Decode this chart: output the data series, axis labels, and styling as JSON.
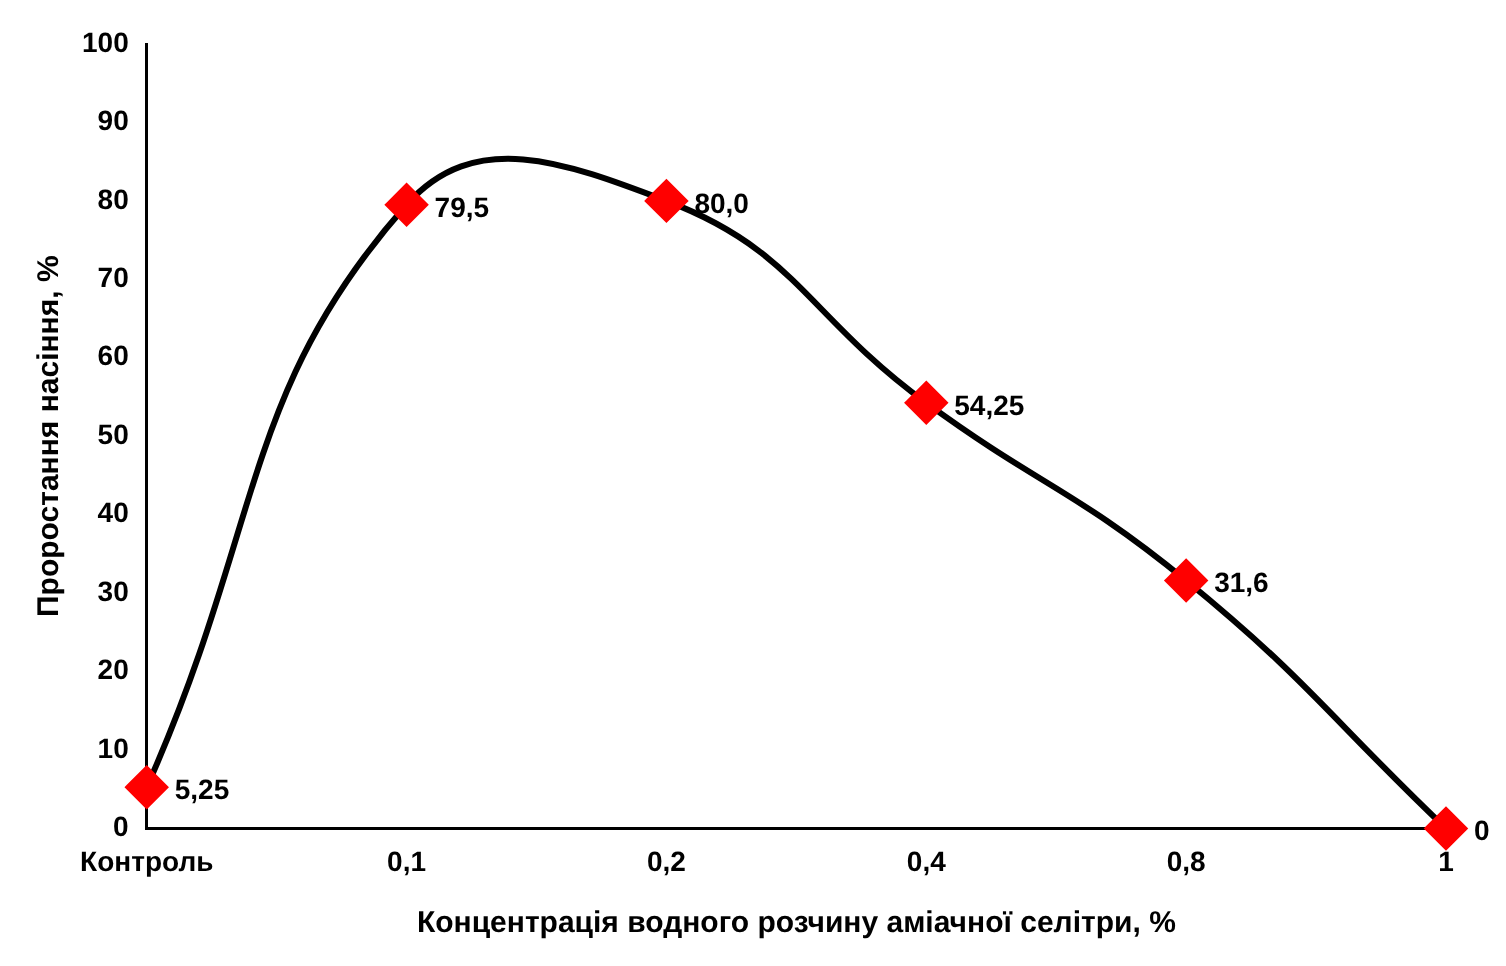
{
  "chart_data": {
    "type": "line",
    "xlabel": "Концентрація водного розчину аміачної селітри, %",
    "ylabel": "Проростання насіння, %",
    "categories": [
      "Контроль",
      "0,1",
      "0,2",
      "0,4",
      "0,8",
      "1"
    ],
    "series": [
      {
        "color": "#000000",
        "values": [
          5.25,
          79.5,
          80.0,
          54.25,
          31.6,
          0
        ],
        "colors": [
          "#ff0000",
          "#ff0000",
          "#ff0000",
          "#ff0000",
          "#ff0000",
          "#ff0000"
        ],
        "value_labels": [
          "5,25",
          "79,5",
          "80,0",
          "54,25",
          "31,6",
          "0"
        ]
      }
    ],
    "ylim": [
      0,
      100
    ],
    "yticks": [
      0,
      10,
      20,
      30,
      40,
      50,
      60,
      70,
      80,
      90,
      100
    ],
    "grid": false,
    "legend": false,
    "marker": "diamond",
    "line_style": "solid"
  }
}
